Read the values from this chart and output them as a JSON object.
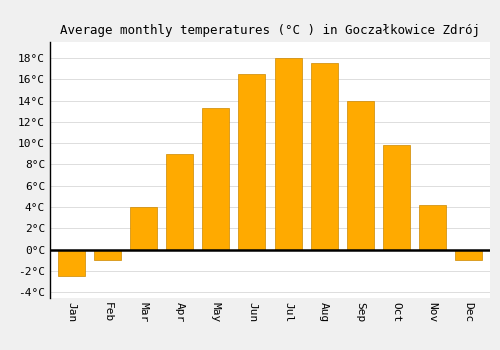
{
  "title": "Average monthly temperatures (°C ) in Goczałkowice Zdrój",
  "months": [
    "Jan",
    "Feb",
    "Mar",
    "Apr",
    "May",
    "Jun",
    "Jul",
    "Aug",
    "Sep",
    "Oct",
    "Nov",
    "Dec"
  ],
  "values": [
    -2.5,
    -1.0,
    4.0,
    9.0,
    13.3,
    16.5,
    18.0,
    17.5,
    14.0,
    9.8,
    4.2,
    -1.0
  ],
  "bar_color": "#FFAA00",
  "bar_edge_color": "#CC8800",
  "ylim": [
    -4.5,
    19.5
  ],
  "yticks": [
    -4,
    -2,
    0,
    2,
    4,
    6,
    8,
    10,
    12,
    14,
    16,
    18
  ],
  "ytick_labels": [
    "-4°C",
    "-2°C",
    "0°C",
    "2°C",
    "4°C",
    "6°C",
    "8°C",
    "10°C",
    "12°C",
    "14°C",
    "16°C",
    "18°C"
  ],
  "background_color": "#f0f0f0",
  "plot_bg_color": "#ffffff",
  "grid_color": "#dddddd",
  "title_fontsize": 9,
  "tick_fontsize": 8,
  "bar_width": 0.75
}
